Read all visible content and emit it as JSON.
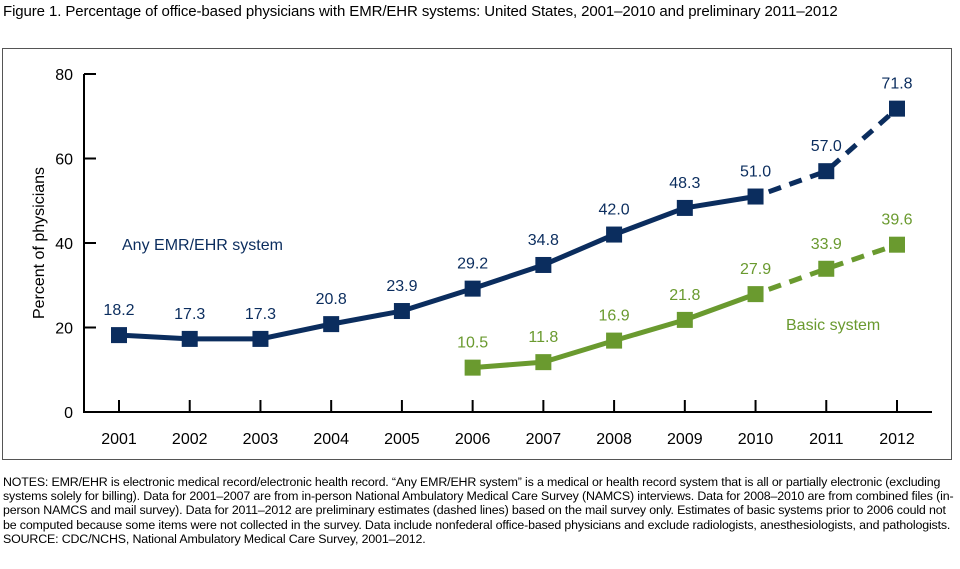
{
  "title": "Figure 1. Percentage of office-based physicians with EMR/EHR systems: United States, 2001–2010 and preliminary 2011–2012",
  "notes": "NOTES: EMR/EHR is electronic medical record/electronic health record. “Any EMR/EHR system” is a medical or health record system that is all or partially electronic (excluding systems solely for billing). Data for 2001–2007 are from in-person National Ambulatory Medical Care Survey (NAMCS) interviews. Data for 2008–2010 are from combined files (in-person NAMCS and mail survey). Data for 2011–2012 are preliminary estimates (dashed lines) based on the mail survey only. Estimates of basic systems prior to 2006 could not be computed because some items were not collected in the survey. Data include nonfederal office-based physicians and exclude radiologists, anesthesiologists, and pathologists.",
  "source": "SOURCE: CDC/NCHS, National Ambulatory Medical Care Survey, 2001–2012.",
  "chart_data": {
    "type": "line",
    "title": "Percentage of office-based physicians with EMR/EHR systems: United States, 2001–2010 and preliminary 2011–2012",
    "xlabel": "",
    "ylabel": "Percent of physicians",
    "ylim": [
      0,
      80
    ],
    "yticks": [
      0,
      20,
      40,
      60,
      80
    ],
    "x": [
      "2001",
      "2002",
      "2003",
      "2004",
      "2005",
      "2006",
      "2007",
      "2008",
      "2009",
      "2010",
      "2011",
      "2012"
    ],
    "grid": false,
    "preliminary_from": "2010",
    "series": [
      {
        "name": "Any EMR/EHR system",
        "color": "#0b2d5e",
        "values": [
          18.2,
          17.3,
          17.3,
          20.8,
          23.9,
          29.2,
          34.8,
          42.0,
          48.3,
          51.0,
          57.0,
          71.8
        ],
        "labels": [
          "18.2",
          "17.3",
          "17.3",
          "20.8",
          "23.9",
          "29.2",
          "34.8",
          "42.0",
          "48.3",
          "51.0",
          "57.0",
          "71.8"
        ]
      },
      {
        "name": "Basic system",
        "color": "#6a9a2f",
        "values": [
          null,
          null,
          null,
          null,
          null,
          10.5,
          11.8,
          16.9,
          21.8,
          27.9,
          33.9,
          39.6
        ],
        "labels": [
          null,
          null,
          null,
          null,
          null,
          "10.5",
          "11.8",
          "16.9",
          "21.8",
          "27.9",
          "33.9",
          "39.6"
        ]
      }
    ],
    "annotations": [
      {
        "text": "Any EMR/EHR system",
        "series": "Any EMR/EHR system",
        "near": "2002-2003 at 40"
      },
      {
        "text": "Basic system",
        "series": "Basic system",
        "near": "2011 at 20"
      }
    ]
  }
}
